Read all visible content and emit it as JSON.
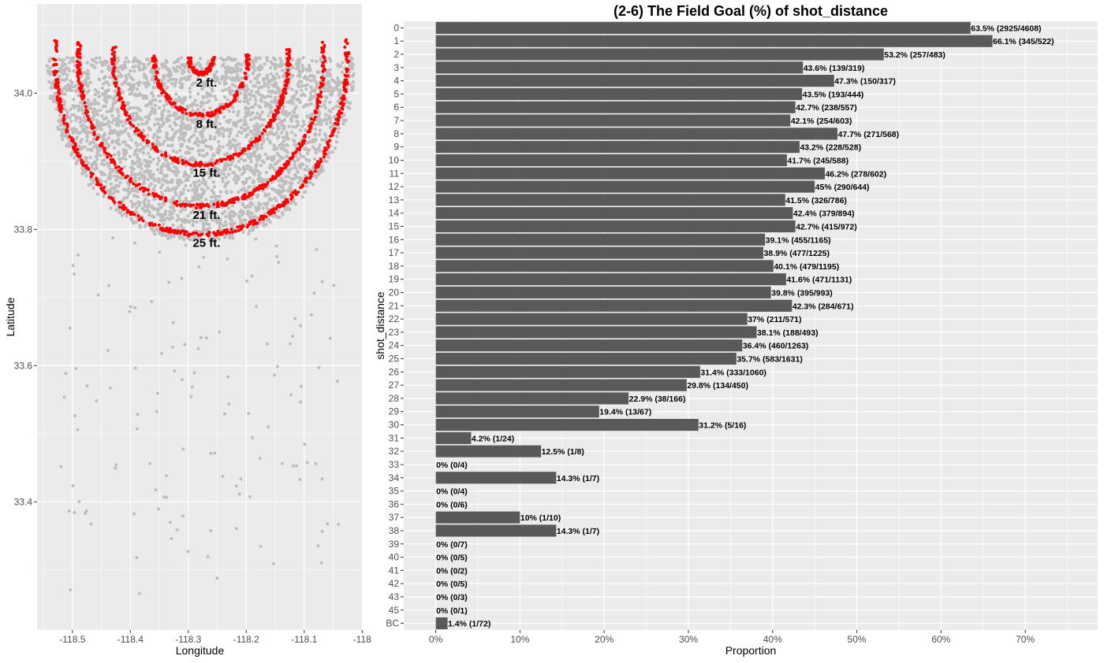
{
  "chart_data": [
    {
      "type": "scatter",
      "title": "",
      "xlabel": "Longitude",
      "ylabel": "Latitude",
      "xlim": [
        -118.561,
        -117.999
      ],
      "ylim": [
        33.212,
        34.131
      ],
      "xticks": [
        "-118.5",
        "-118.4",
        "-118.3",
        "-118.2",
        "-118.1",
        "-118"
      ],
      "yticks": [
        "33.4",
        "33.6",
        "33.8",
        "34.0"
      ],
      "grid": true,
      "point_color": "#bebebe",
      "highlight_color": "#ff0000",
      "center": {
        "lon": -118.278,
        "lat": 34.05
      },
      "annotations": [
        {
          "label": "2 ft.",
          "distance": 2
        },
        {
          "label": "8 ft.",
          "distance": 8
        },
        {
          "label": "15 ft.",
          "distance": 15
        },
        {
          "label": "21 ft.",
          "distance": 21
        },
        {
          "label": "25 ft.",
          "distance": 25
        }
      ]
    },
    {
      "type": "bar",
      "orientation": "horizontal",
      "title": "(2-6) The Field Goal (%) of shot_distance",
      "xlabel": "Proportion",
      "ylabel": "shot_distance",
      "xlim": [
        -3.8,
        78.6
      ],
      "xticks": [
        "0%",
        "10%",
        "20%",
        "30%",
        "40%",
        "50%",
        "60%",
        "70%"
      ],
      "grid": true,
      "bar_color": "#595959",
      "bars": [
        {
          "category": "0",
          "value": 63.5,
          "label": "63.5% (2925/4608)"
        },
        {
          "category": "1",
          "value": 66.1,
          "label": "66.1% (345/522)"
        },
        {
          "category": "2",
          "value": 53.2,
          "label": "53.2% (257/483)"
        },
        {
          "category": "3",
          "value": 43.6,
          "label": "43.6% (139/319)"
        },
        {
          "category": "4",
          "value": 47.3,
          "label": "47.3% (150/317)"
        },
        {
          "category": "5",
          "value": 43.5,
          "label": "43.5% (193/444)"
        },
        {
          "category": "6",
          "value": 42.7,
          "label": "42.7% (238/557)"
        },
        {
          "category": "7",
          "value": 42.1,
          "label": "42.1% (254/603)"
        },
        {
          "category": "8",
          "value": 47.7,
          "label": "47.7% (271/568)"
        },
        {
          "category": "9",
          "value": 43.2,
          "label": "43.2% (228/528)"
        },
        {
          "category": "10",
          "value": 41.7,
          "label": "41.7% (245/588)"
        },
        {
          "category": "11",
          "value": 46.2,
          "label": "46.2% (278/602)"
        },
        {
          "category": "12",
          "value": 45,
          "label": "45% (290/644)"
        },
        {
          "category": "13",
          "value": 41.5,
          "label": "41.5% (326/786)"
        },
        {
          "category": "14",
          "value": 42.4,
          "label": "42.4% (379/894)"
        },
        {
          "category": "15",
          "value": 42.7,
          "label": "42.7% (415/972)"
        },
        {
          "category": "16",
          "value": 39.1,
          "label": "39.1% (455/1165)"
        },
        {
          "category": "17",
          "value": 38.9,
          "label": "38.9% (477/1225)"
        },
        {
          "category": "18",
          "value": 40.1,
          "label": "40.1% (479/1195)"
        },
        {
          "category": "19",
          "value": 41.6,
          "label": "41.6% (471/1131)"
        },
        {
          "category": "20",
          "value": 39.8,
          "label": "39.8% (395/993)"
        },
        {
          "category": "21",
          "value": 42.3,
          "label": "42.3% (284/671)"
        },
        {
          "category": "22",
          "value": 37,
          "label": "37% (211/571)"
        },
        {
          "category": "23",
          "value": 38.1,
          "label": "38.1% (188/493)"
        },
        {
          "category": "24",
          "value": 36.4,
          "label": "36.4% (460/1263)"
        },
        {
          "category": "25",
          "value": 35.7,
          "label": "35.7% (583/1631)"
        },
        {
          "category": "26",
          "value": 31.4,
          "label": "31.4% (333/1060)"
        },
        {
          "category": "27",
          "value": 29.8,
          "label": "29.8% (134/450)"
        },
        {
          "category": "28",
          "value": 22.9,
          "label": "22.9% (38/166)"
        },
        {
          "category": "29",
          "value": 19.4,
          "label": "19.4% (13/67)"
        },
        {
          "category": "30",
          "value": 31.2,
          "label": "31.2% (5/16)"
        },
        {
          "category": "31",
          "value": 4.2,
          "label": "4.2% (1/24)"
        },
        {
          "category": "32",
          "value": 12.5,
          "label": "12.5% (1/8)"
        },
        {
          "category": "33",
          "value": 0,
          "label": "0% (0/4)"
        },
        {
          "category": "34",
          "value": 14.3,
          "label": "14.3% (1/7)"
        },
        {
          "category": "35",
          "value": 0,
          "label": "0% (0/4)"
        },
        {
          "category": "36",
          "value": 0,
          "label": "0% (0/6)"
        },
        {
          "category": "37",
          "value": 10,
          "label": "10% (1/10)"
        },
        {
          "category": "38",
          "value": 14.3,
          "label": "14.3% (1/7)"
        },
        {
          "category": "39",
          "value": 0,
          "label": "0% (0/7)"
        },
        {
          "category": "40",
          "value": 0,
          "label": "0% (0/5)"
        },
        {
          "category": "41",
          "value": 0,
          "label": "0% (0/2)"
        },
        {
          "category": "42",
          "value": 0,
          "label": "0% (0/5)"
        },
        {
          "category": "43",
          "value": 0,
          "label": "0% (0/3)"
        },
        {
          "category": "45",
          "value": 0,
          "label": "0% (0/1)"
        },
        {
          "category": "BC",
          "value": 1.4,
          "label": "1.4% (1/72)"
        }
      ]
    }
  ]
}
